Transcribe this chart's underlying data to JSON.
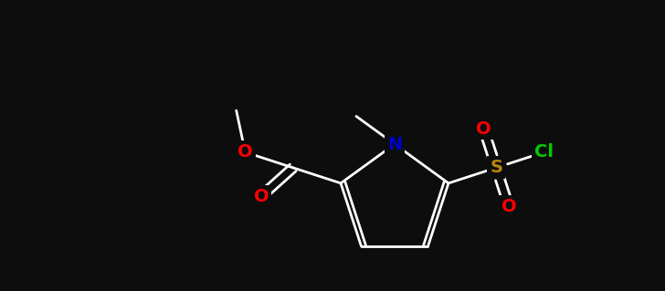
{
  "background_color": "#0d0d0d",
  "bond_color": "#ffffff",
  "atom_colors": {
    "O": "#ff0000",
    "N": "#0000cc",
    "S": "#b8860b",
    "Cl": "#00cc00",
    "C": "#ffffff"
  },
  "figsize": [
    7.28,
    3.19
  ],
  "dpi": 100,
  "lw": 2.0,
  "fs": 14
}
